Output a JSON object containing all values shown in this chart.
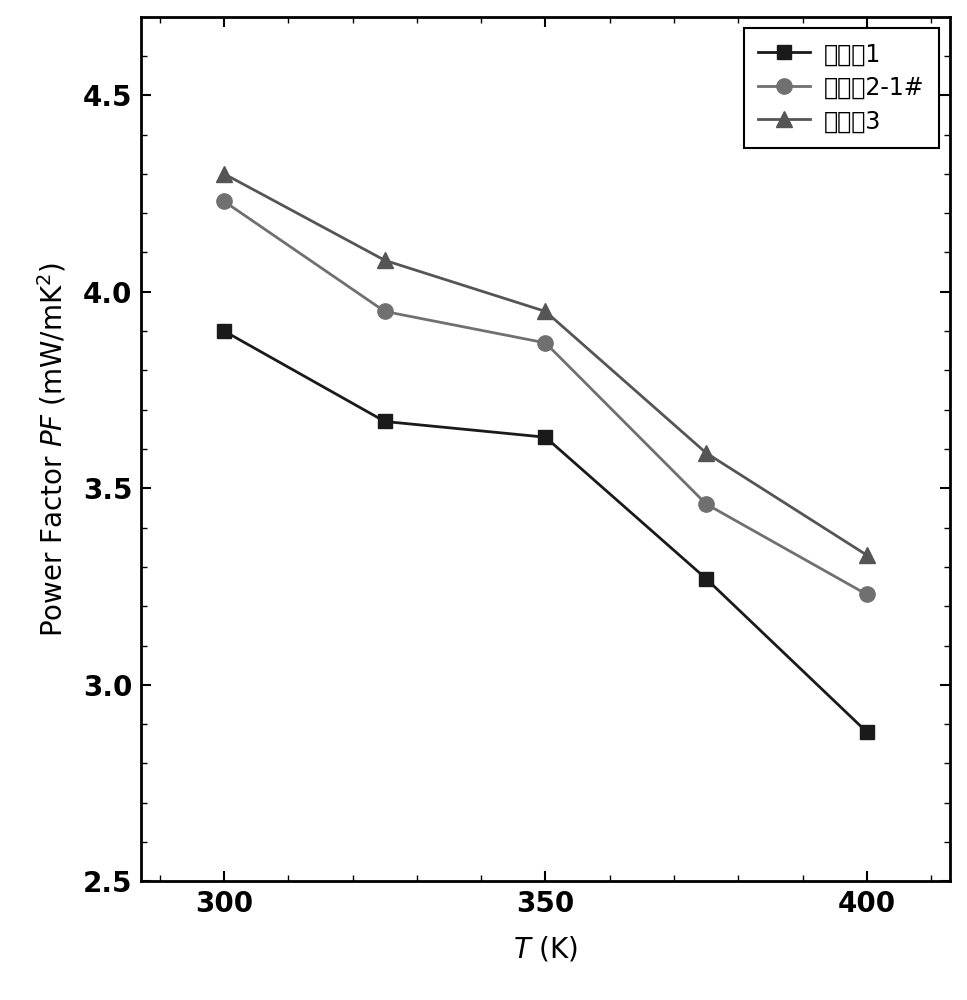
{
  "series": [
    {
      "label": "实施例1",
      "x": [
        300,
        325,
        350,
        375,
        400
      ],
      "y": [
        3.9,
        3.67,
        3.63,
        3.27,
        2.88
      ],
      "color": "#1a1a1a",
      "marker": "s",
      "markersize": 10,
      "linewidth": 2.0,
      "zorder": 3
    },
    {
      "label": "实施例2-1#",
      "x": [
        300,
        325,
        350,
        375,
        400
      ],
      "y": [
        4.23,
        3.95,
        3.87,
        3.46,
        3.23
      ],
      "color": "#707070",
      "marker": "o",
      "markersize": 11,
      "linewidth": 2.0,
      "zorder": 2
    },
    {
      "label": "实施例3",
      "x": [
        300,
        325,
        350,
        375,
        400
      ],
      "y": [
        4.3,
        4.08,
        3.95,
        3.59,
        3.33
      ],
      "color": "#555555",
      "marker": "^",
      "markersize": 11,
      "linewidth": 2.0,
      "zorder": 2
    }
  ],
  "xlim": [
    287,
    413
  ],
  "ylim": [
    2.5,
    4.7
  ],
  "xticks": [
    300,
    350,
    400
  ],
  "yticks": [
    2.5,
    3.0,
    3.5,
    4.0,
    4.5
  ],
  "tick_fontsize": 20,
  "label_fontsize": 20,
  "legend_fontsize": 17,
  "figsize": [
    9.67,
    10.0
  ],
  "dpi": 100,
  "background_color": "#ffffff"
}
